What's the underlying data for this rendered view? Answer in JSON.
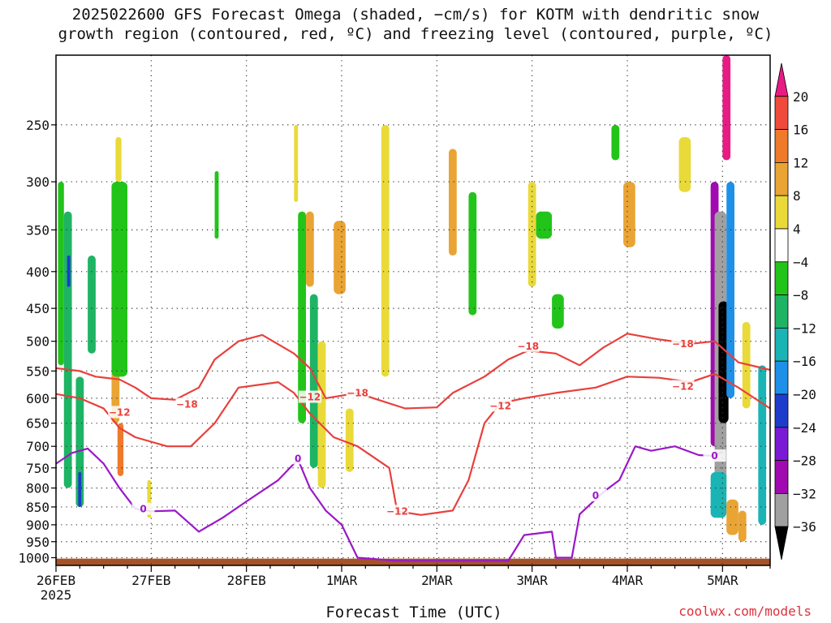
{
  "title_line1": "2025022600 GFS Forecast Omega (shaded, −cm/s) for KOTM with dendritic snow",
  "title_line2": "growth region (contoured, red, ºC) and freezing level (contoured, purple, ºC)",
  "credit": "coolwx.com/models",
  "chart_data": {
    "type": "heatmap",
    "title": "2025022600 GFS Forecast Omega (shaded, −cm/s) for KOTM with dendritic snow growth region (contoured, red, ºC) and freezing level (contoured, purple, ºC)",
    "xlabel": "Forecast Time (UTC)",
    "ylabel": "",
    "x_unit": "hours since 2025-02-26 00 UTC",
    "xlim": [
      0,
      180
    ],
    "y_levels": [
      250,
      300,
      350,
      400,
      450,
      500,
      550,
      600,
      650,
      700,
      750,
      800,
      850,
      900,
      950,
      1000
    ],
    "ylim": [
      200,
      1025
    ],
    "y_scale": "log-pressure",
    "x_ticks": [
      {
        "x": 0,
        "label": "26FEB",
        "sublabel": "2025"
      },
      {
        "x": 24,
        "label": "27FEB"
      },
      {
        "x": 48,
        "label": "28FEB"
      },
      {
        "x": 72,
        "label": "1MAR"
      },
      {
        "x": 96,
        "label": "2MAR"
      },
      {
        "x": 120,
        "label": "3MAR"
      },
      {
        "x": 144,
        "label": "4MAR"
      },
      {
        "x": 168,
        "label": "5MAR"
      }
    ],
    "grid": true,
    "colorbar": {
      "labels": [
        "20",
        "16",
        "12",
        "8",
        "4",
        "−4",
        "−8",
        "−12",
        "−16",
        "−20",
        "−24",
        "−28",
        "−32",
        "−36"
      ],
      "colors": [
        "#e81a84",
        "#f04a3c",
        "#ef7a2a",
        "#e9a434",
        "#e9da3a",
        "#ffffff",
        "#22c41a",
        "#1eb464",
        "#1ab4b4",
        "#1e90e8",
        "#1e3ccc",
        "#7a1ad4",
        "#a00ab0",
        "#a0a0a0",
        "#000000"
      ]
    },
    "surface_color": "#a5522a",
    "omega_cells": [
      {
        "x": [
          0.5,
          2
        ],
        "p": [
          300,
          540
        ],
        "value": -6
      },
      {
        "x": [
          2,
          4
        ],
        "p": [
          330,
          800
        ],
        "value": -10
      },
      {
        "x": [
          2.8,
          3.6
        ],
        "p": [
          380,
          420
        ],
        "value": -22
      },
      {
        "x": [
          5,
          7
        ],
        "p": [
          560,
          850
        ],
        "value": -10
      },
      {
        "x": [
          5.6,
          6.4
        ],
        "p": [
          760,
          850
        ],
        "value": -22
      },
      {
        "x": [
          8,
          10
        ],
        "p": [
          380,
          520
        ],
        "value": -10
      },
      {
        "x": [
          15,
          16.5
        ],
        "p": [
          260,
          300
        ],
        "value": 6
      },
      {
        "x": [
          14,
          16
        ],
        "p": [
          550,
          650
        ],
        "value": 10
      },
      {
        "x": [
          15.5,
          17
        ],
        "p": [
          650,
          770
        ],
        "value": 14
      },
      {
        "x": [
          16,
          17
        ],
        "p": [
          380,
          550
        ],
        "value": -14
      },
      {
        "x": [
          14,
          18
        ],
        "p": [
          300,
          560
        ],
        "value": -6
      },
      {
        "x": [
          23,
          24
        ],
        "p": [
          780,
          880
        ],
        "value": 5
      },
      {
        "x": [
          40,
          41
        ],
        "p": [
          290,
          360
        ],
        "value": -6
      },
      {
        "x": [
          60,
          61
        ],
        "p": [
          250,
          320
        ],
        "value": 6
      },
      {
        "x": [
          61,
          63
        ],
        "p": [
          330,
          650
        ],
        "value": -7
      },
      {
        "x": [
          63,
          65
        ],
        "p": [
          330,
          420
        ],
        "value": 9
      },
      {
        "x": [
          64,
          66
        ],
        "p": [
          430,
          750
        ],
        "value": -10
      },
      {
        "x": [
          66,
          68
        ],
        "p": [
          500,
          800
        ],
        "value": 6
      },
      {
        "x": [
          70,
          73
        ],
        "p": [
          340,
          430
        ],
        "value": 8
      },
      {
        "x": [
          73,
          75
        ],
        "p": [
          620,
          760
        ],
        "value": 5
      },
      {
        "x": [
          82,
          84
        ],
        "p": [
          250,
          560
        ],
        "value": 4
      },
      {
        "x": [
          99,
          101
        ],
        "p": [
          270,
          380
        ],
        "value": 9
      },
      {
        "x": [
          104,
          106
        ],
        "p": [
          310,
          460
        ],
        "value": -6
      },
      {
        "x": [
          119,
          121
        ],
        "p": [
          300,
          420
        ],
        "value": 5
      },
      {
        "x": [
          121,
          125
        ],
        "p": [
          330,
          360
        ],
        "value": -6
      },
      {
        "x": [
          125,
          128
        ],
        "p": [
          430,
          480
        ],
        "value": -6
      },
      {
        "x": [
          140,
          142
        ],
        "p": [
          250,
          280
        ],
        "value": -6
      },
      {
        "x": [
          143,
          146
        ],
        "p": [
          300,
          370
        ],
        "value": 9
      },
      {
        "x": [
          157,
          160
        ],
        "p": [
          260,
          310
        ],
        "value": 5
      },
      {
        "x": [
          165,
          167
        ],
        "p": [
          300,
          700
        ],
        "value": -28
      },
      {
        "x": [
          166,
          169
        ],
        "p": [
          330,
          820
        ],
        "value": -34
      },
      {
        "x": [
          167,
          169.5
        ],
        "p": [
          440,
          650
        ],
        "value": -40
      },
      {
        "x": [
          169,
          171
        ],
        "p": [
          300,
          600
        ],
        "value": -18
      },
      {
        "x": [
          168,
          170
        ],
        "p": [
          200,
          280
        ],
        "value": 22
      },
      {
        "x": [
          165,
          169
        ],
        "p": [
          760,
          880
        ],
        "value": -14
      },
      {
        "x": [
          169,
          172
        ],
        "p": [
          830,
          930
        ],
        "value": 10
      },
      {
        "x": [
          172,
          174
        ],
        "p": [
          860,
          950
        ],
        "value": 9
      },
      {
        "x": [
          173,
          175
        ],
        "p": [
          470,
          620
        ],
        "value": 6
      },
      {
        "x": [
          177,
          179
        ],
        "p": [
          540,
          900
        ],
        "value": -12
      }
    ],
    "contours": [
      {
        "name": "−18",
        "color": "#e8403c",
        "label_points": [
          [
            33,
            612
          ],
          [
            76,
            590
          ],
          [
            119,
            508
          ],
          [
            158,
            504
          ]
        ],
        "points": [
          [
            0,
            545
          ],
          [
            6,
            550
          ],
          [
            10,
            560
          ],
          [
            16,
            565
          ],
          [
            20,
            580
          ],
          [
            24,
            600
          ],
          [
            30,
            603
          ],
          [
            36,
            580
          ],
          [
            40,
            530
          ],
          [
            46,
            500
          ],
          [
            52,
            490
          ],
          [
            60,
            520
          ],
          [
            64,
            545
          ],
          [
            68,
            600
          ],
          [
            72,
            595
          ],
          [
            76,
            590
          ],
          [
            80,
            600
          ],
          [
            88,
            620
          ],
          [
            96,
            618
          ],
          [
            100,
            590
          ],
          [
            108,
            560
          ],
          [
            114,
            530
          ],
          [
            119,
            515
          ],
          [
            126,
            520
          ],
          [
            132,
            540
          ],
          [
            138,
            510
          ],
          [
            144,
            488
          ],
          [
            152,
            497
          ],
          [
            160,
            504
          ],
          [
            166,
            500
          ],
          [
            172,
            535
          ],
          [
            180,
            548
          ]
        ]
      },
      {
        "name": "−12",
        "color": "#e8403c",
        "label_points": [
          [
            16,
            628
          ],
          [
            64,
            598
          ],
          [
            86,
            862
          ],
          [
            112,
            615
          ],
          [
            158,
            578
          ]
        ],
        "points": [
          [
            0,
            592
          ],
          [
            6,
            600
          ],
          [
            12,
            620
          ],
          [
            16,
            660
          ],
          [
            20,
            680
          ],
          [
            28,
            700
          ],
          [
            34,
            700
          ],
          [
            40,
            650
          ],
          [
            46,
            580
          ],
          [
            56,
            570
          ],
          [
            60,
            590
          ],
          [
            64,
            630
          ],
          [
            70,
            680
          ],
          [
            76,
            700
          ],
          [
            84,
            750
          ],
          [
            86,
            862
          ],
          [
            92,
            872
          ],
          [
            100,
            860
          ],
          [
            104,
            780
          ],
          [
            108,
            650
          ],
          [
            112,
            610
          ],
          [
            118,
            600
          ],
          [
            126,
            590
          ],
          [
            136,
            580
          ],
          [
            144,
            560
          ],
          [
            152,
            562
          ],
          [
            160,
            570
          ],
          [
            166,
            555
          ],
          [
            172,
            580
          ],
          [
            180,
            620
          ]
        ]
      },
      {
        "name": "0",
        "color": "#9a18c8",
        "label_points": [
          [
            22,
            856
          ],
          [
            61,
            728
          ],
          [
            136,
            820
          ],
          [
            166,
            722
          ]
        ],
        "points": [
          [
            0,
            740
          ],
          [
            4,
            715
          ],
          [
            8,
            705
          ],
          [
            12,
            740
          ],
          [
            16,
            800
          ],
          [
            20,
            855
          ],
          [
            24,
            862
          ],
          [
            30,
            860
          ],
          [
            36,
            920
          ],
          [
            42,
            880
          ],
          [
            48,
            835
          ],
          [
            56,
            780
          ],
          [
            61,
            730
          ],
          [
            64,
            800
          ],
          [
            68,
            860
          ],
          [
            72,
            900
          ],
          [
            76,
            1000
          ],
          [
            86,
            1010
          ],
          [
            100,
            1010
          ],
          [
            114,
            1010
          ],
          [
            118,
            930
          ],
          [
            125,
            920
          ],
          [
            126,
            1000
          ],
          [
            130,
            1000
          ],
          [
            132,
            870
          ],
          [
            138,
            810
          ],
          [
            142,
            780
          ],
          [
            146,
            700
          ],
          [
            150,
            710
          ],
          [
            156,
            700
          ],
          [
            162,
            720
          ],
          [
            166,
            722
          ],
          [
            168,
            712
          ]
        ]
      }
    ]
  }
}
